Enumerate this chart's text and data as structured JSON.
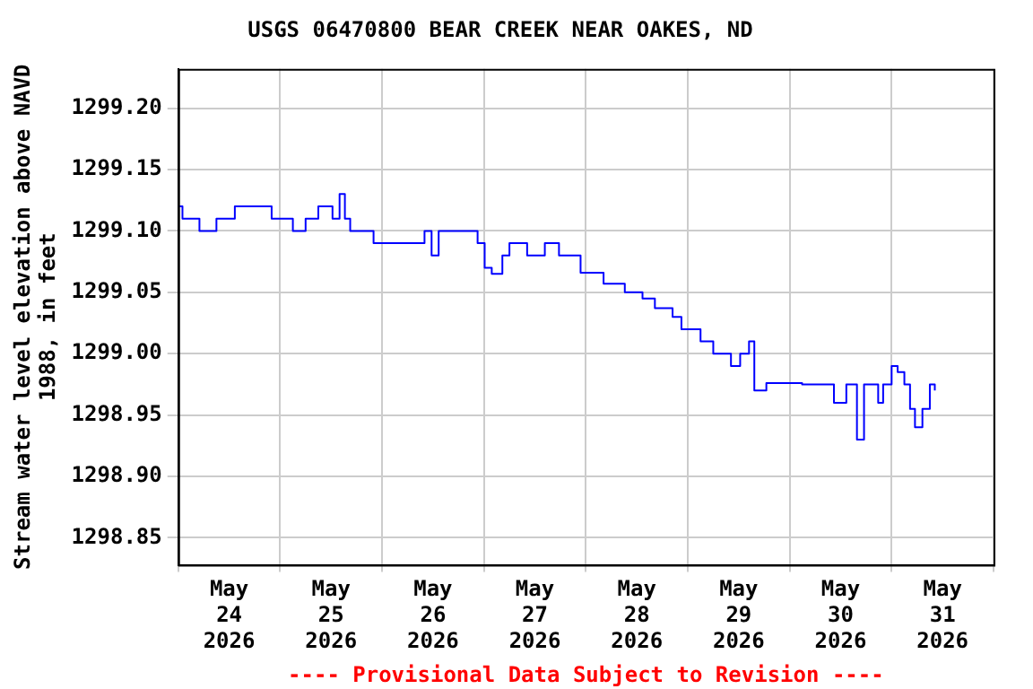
{
  "chart_data": {
    "type": "step",
    "title": "USGS 06470800 BEAR CREEK NEAR OAKES, ND",
    "ylabel": "Stream water level elevation above NAVD 1988, in feet",
    "annotations": [
      "---- Provisional Data Subject to Revision ----"
    ],
    "grid": true,
    "legend": false,
    "marker": "none",
    "line_style": "solid",
    "xlim": [
      "2026-05-24T00:00",
      "2026-06-01T00:00"
    ],
    "xticks": [
      {
        "value": "2026-05-24T00:00",
        "label": null
      },
      {
        "value": "2026-05-24T12:00",
        "label": "May\n24\n2026"
      },
      {
        "value": "2026-05-25T00:00",
        "label": null
      },
      {
        "value": "2026-05-25T12:00",
        "label": "May\n25\n2026"
      },
      {
        "value": "2026-05-26T00:00",
        "label": null
      },
      {
        "value": "2026-05-26T12:00",
        "label": "May\n26\n2026"
      },
      {
        "value": "2026-05-27T00:00",
        "label": null
      },
      {
        "value": "2026-05-27T12:00",
        "label": "May\n27\n2026"
      },
      {
        "value": "2026-05-28T00:00",
        "label": null
      },
      {
        "value": "2026-05-28T12:00",
        "label": "May\n28\n2026"
      },
      {
        "value": "2026-05-29T00:00",
        "label": null
      },
      {
        "value": "2026-05-29T12:00",
        "label": "May\n29\n2026"
      },
      {
        "value": "2026-05-30T00:00",
        "label": null
      },
      {
        "value": "2026-05-30T12:00",
        "label": "May\n30\n2026"
      },
      {
        "value": "2026-05-31T00:00",
        "label": null
      },
      {
        "value": "2026-05-31T12:00",
        "label": "May\n31\n2026"
      },
      {
        "value": "2026-06-01T00:00",
        "label": null
      }
    ],
    "ylim": [
      1298.828,
      1299.232
    ],
    "yticks": [
      1298.85,
      {
        "value": 1298.9,
        "label": "1298.90"
      },
      1298.95,
      {
        "value": 1299.0,
        "label": "1299.00"
      },
      1299.05,
      {
        "value": 1299.1,
        "label": "1299.10"
      },
      1299.15,
      {
        "value": 1299.2,
        "label": "1299.20"
      }
    ],
    "series": [
      {
        "color": "#0000ff",
        "x": [
          "2026-05-24T00:00",
          "2026-05-24T01:00",
          "2026-05-24T05:00",
          "2026-05-24T09:00",
          "2026-05-24T13:20",
          "2026-05-24T19:30",
          "2026-05-24T22:00",
          "2026-05-25T03:00",
          "2026-05-25T06:00",
          "2026-05-25T09:00",
          "2026-05-25T12:20",
          "2026-05-25T14:00",
          "2026-05-25T15:15",
          "2026-05-25T16:30",
          "2026-05-25T19:45",
          "2026-05-25T22:00",
          "2026-05-26T03:00",
          "2026-05-26T10:00",
          "2026-05-26T11:40",
          "2026-05-26T13:20",
          "2026-05-26T19:30",
          "2026-05-26T22:30",
          "2026-05-27T00:10",
          "2026-05-27T01:50",
          "2026-05-27T04:20",
          "2026-05-27T06:00",
          "2026-05-27T10:10",
          "2026-05-27T14:20",
          "2026-05-27T17:40",
          "2026-05-27T22:45",
          "2026-05-28T04:10",
          "2026-05-28T09:10",
          "2026-05-28T13:20",
          "2026-05-28T16:15",
          "2026-05-28T20:25",
          "2026-05-28T22:30",
          "2026-05-29T03:00",
          "2026-05-29T06:00",
          "2026-05-29T10:10",
          "2026-05-29T12:20",
          "2026-05-29T14:25",
          "2026-05-29T15:40",
          "2026-05-29T18:30",
          "2026-05-30T02:55",
          "2026-05-30T10:25",
          "2026-05-30T13:20",
          "2026-05-30T15:50",
          "2026-05-30T17:30",
          "2026-05-30T20:50",
          "2026-05-30T22:00",
          "2026-05-31T00:00",
          "2026-05-31T01:25",
          "2026-05-31T03:00",
          "2026-05-31T04:20",
          "2026-05-31T05:30",
          "2026-05-31T07:15",
          "2026-05-31T09:00",
          "2026-05-31T10:10"
        ],
        "values": [
          1299.12,
          1299.11,
          1299.1,
          1299.11,
          1299.12,
          1299.12,
          1299.11,
          1299.1,
          1299.11,
          1299.12,
          1299.11,
          1299.13,
          1299.11,
          1299.1,
          1299.1,
          1299.09,
          1299.09,
          1299.1,
          1299.08,
          1299.1,
          1299.1,
          1299.09,
          1299.07,
          1299.065,
          1299.08,
          1299.09,
          1299.08,
          1299.09,
          1299.08,
          1299.066,
          1299.057,
          1299.05,
          1299.045,
          1299.037,
          1299.03,
          1299.02,
          1299.01,
          1299.0,
          1298.99,
          1299.0,
          1299.01,
          1298.97,
          1298.976,
          1298.975,
          1298.96,
          1298.975,
          1298.93,
          1298.975,
          1298.96,
          1298.975,
          1298.99,
          1298.985,
          1298.975,
          1298.955,
          1298.94,
          1298.955,
          1298.975,
          1298.97
        ]
      }
    ]
  }
}
